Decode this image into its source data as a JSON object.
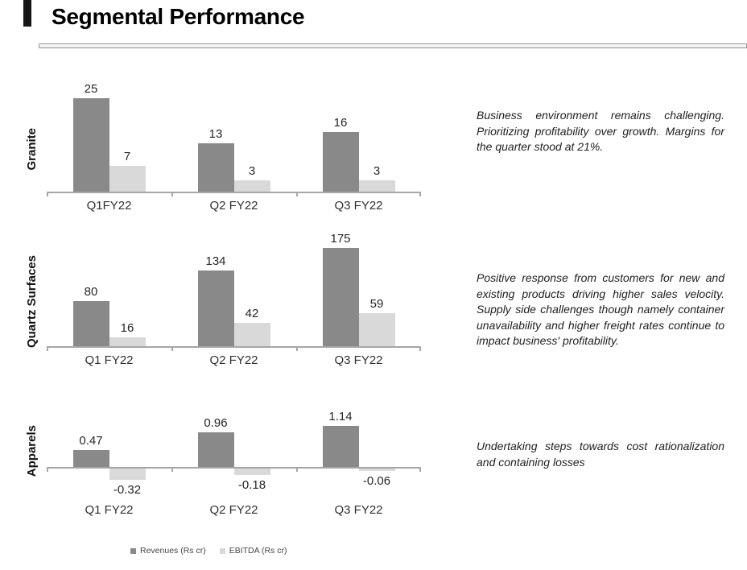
{
  "title": "Segmental Performance",
  "colors": {
    "revenues": "#898989",
    "ebitda": "#d9d9d9",
    "axis": "#a6a6a6"
  },
  "legend": {
    "items": [
      {
        "label": "Revenues (Rs cr)",
        "color": "#898989"
      },
      {
        "label": "EBITDA (Rs cr)",
        "color": "#d9d9d9"
      }
    ]
  },
  "sections": [
    {
      "label": "Granite",
      "comment": "Business environment remains challenging. Prioritizing profitability over growth. Margins for the quarter stood at 21%."
    },
    {
      "label": "Quartz Surfaces",
      "comment": "Positive response from customers for new and existing products driving higher sales velocity. Supply side challenges though namely container unavailability and higher freight rates continue to impact business' profitability."
    },
    {
      "label": "Apparels",
      "comment": "Undertaking steps towards cost rationalization and containing losses"
    }
  ],
  "chart_data": [
    {
      "type": "bar",
      "title": "Granite",
      "categories": [
        "Q1FY22",
        "Q2 FY22",
        "Q3 FY22"
      ],
      "series": [
        {
          "name": "Revenues (Rs cr)",
          "values": [
            25,
            13,
            16
          ]
        },
        {
          "name": "EBITDA (Rs cr)",
          "values": [
            7,
            3,
            3
          ]
        }
      ],
      "ylim": [
        0,
        27
      ],
      "grid": false,
      "legend_position": "bottom"
    },
    {
      "type": "bar",
      "title": "Quartz Surfaces",
      "categories": [
        "Q1 FY22",
        "Q2 FY22",
        "Q3 FY22"
      ],
      "series": [
        {
          "name": "Revenues (Rs cr)",
          "values": [
            80,
            134,
            175
          ]
        },
        {
          "name": "EBITDA (Rs cr)",
          "values": [
            16,
            42,
            59
          ]
        }
      ],
      "ylim": [
        0,
        190
      ],
      "grid": false,
      "legend_position": "bottom"
    },
    {
      "type": "bar",
      "title": "Apparels",
      "categories": [
        "Q1 FY22",
        "Q2 FY22",
        "Q3 FY22"
      ],
      "series": [
        {
          "name": "Revenues (Rs cr)",
          "values": [
            0.47,
            0.96,
            1.14
          ]
        },
        {
          "name": "EBITDA (Rs cr)",
          "values": [
            -0.32,
            -0.18,
            -0.06
          ]
        }
      ],
      "ylim": [
        -0.5,
        1.3
      ],
      "grid": false,
      "legend_position": "bottom"
    }
  ]
}
